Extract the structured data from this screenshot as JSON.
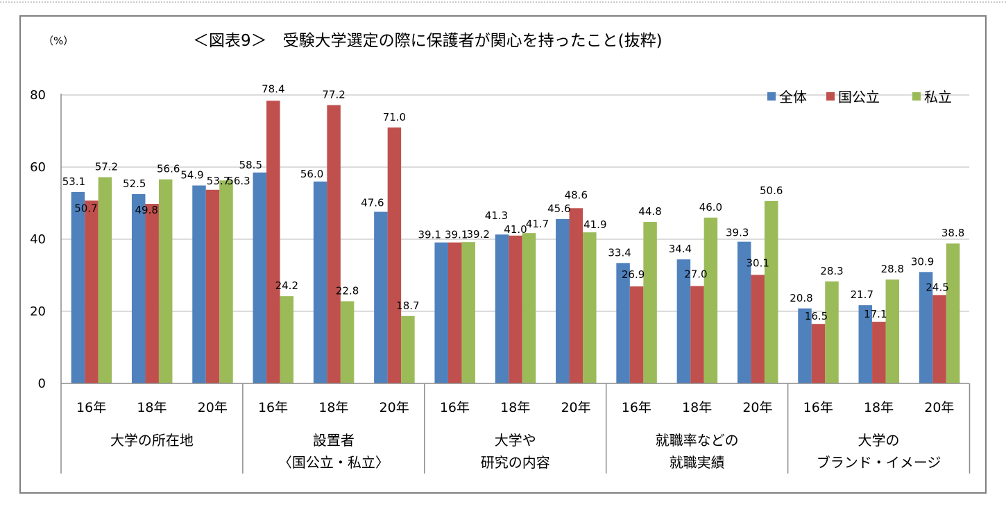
{
  "chart_data": {
    "type": "bar",
    "title": "＜図表9＞　受験大学選定の際に保護者が関心を持ったこと(抜粋)",
    "unit_label": "（%）",
    "ylim": [
      0,
      80
    ],
    "yticks": [
      0,
      20,
      40,
      60,
      80
    ],
    "grid": true,
    "legend_position": "top-right",
    "series_names": [
      "全体",
      "国公立",
      "私立"
    ],
    "series_colors": [
      "#4f81bd",
      "#c0504d",
      "#9bbb59"
    ],
    "groups": [
      {
        "label_lines": [
          "大学の所在地"
        ],
        "categories": [
          {
            "label": "16年",
            "values": [
              53.1,
              50.7,
              57.2
            ]
          },
          {
            "label": "18年",
            "values": [
              52.5,
              49.8,
              56.6
            ]
          },
          {
            "label": "20年",
            "values": [
              54.9,
              53.7,
              56.3
            ]
          }
        ]
      },
      {
        "label_lines": [
          "設置者",
          "〈国公立・私立〉"
        ],
        "categories": [
          {
            "label": "16年",
            "values": [
              58.5,
              78.4,
              24.2
            ]
          },
          {
            "label": "18年",
            "values": [
              56.0,
              77.2,
              22.8
            ]
          },
          {
            "label": "20年",
            "values": [
              47.6,
              71.0,
              18.7
            ]
          }
        ]
      },
      {
        "label_lines": [
          "大学や",
          "研究の内容"
        ],
        "categories": [
          {
            "label": "16年",
            "values": [
              39.1,
              39.1,
              39.2
            ]
          },
          {
            "label": "18年",
            "values": [
              41.3,
              41.0,
              41.7
            ]
          },
          {
            "label": "20年",
            "values": [
              45.6,
              48.6,
              41.9
            ]
          }
        ]
      },
      {
        "label_lines": [
          "就職率などの",
          "就職実績"
        ],
        "categories": [
          {
            "label": "16年",
            "values": [
              33.4,
              26.9,
              44.8
            ]
          },
          {
            "label": "18年",
            "values": [
              34.4,
              27.0,
              46.0
            ]
          },
          {
            "label": "20年",
            "values": [
              39.3,
              30.1,
              50.6
            ]
          }
        ]
      },
      {
        "label_lines": [
          "大学の",
          "ブランド・イメージ"
        ],
        "categories": [
          {
            "label": "16年",
            "values": [
              20.8,
              16.5,
              28.3
            ]
          },
          {
            "label": "18年",
            "values": [
              21.7,
              17.1,
              28.8
            ]
          },
          {
            "label": "20年",
            "values": [
              30.9,
              24.5,
              38.8
            ]
          }
        ]
      }
    ]
  }
}
